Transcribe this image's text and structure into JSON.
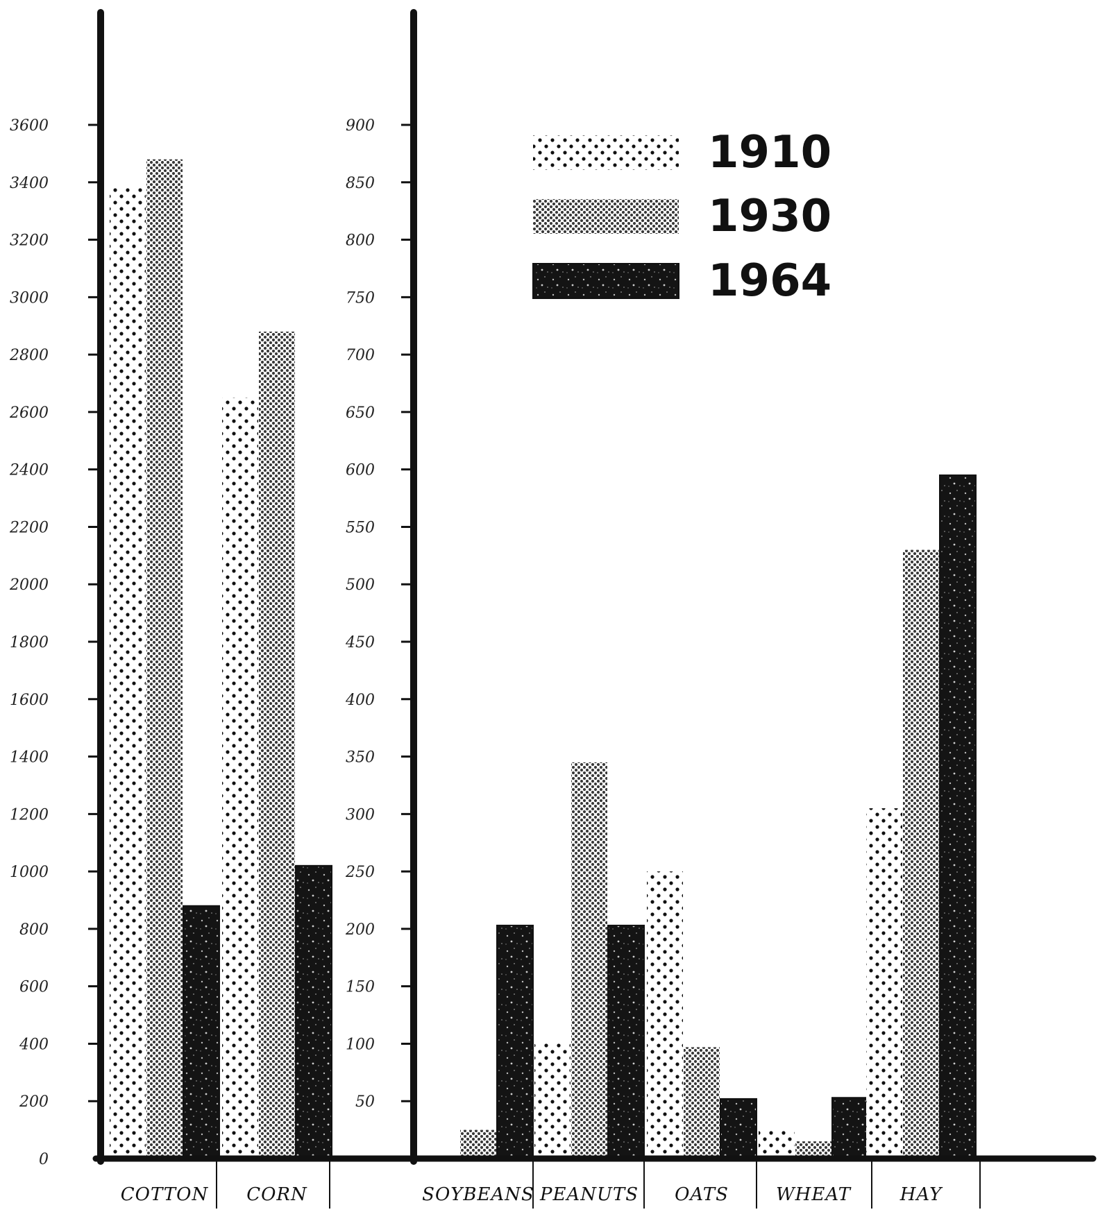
{
  "chart_data": [
    {
      "type": "bar",
      "ylim": [
        0,
        3600
      ],
      "yticks": [
        0,
        200,
        400,
        600,
        800,
        1000,
        1200,
        1400,
        1600,
        1800,
        2000,
        2200,
        2400,
        2600,
        2800,
        3000,
        3200,
        3400,
        3600
      ],
      "ytick_labels": [
        "0",
        "200",
        "400",
        "600",
        "800",
        "1000",
        "1200",
        "1400",
        "1600",
        "1800",
        "2000",
        "2200",
        "2400",
        "2600",
        "2800",
        "3000",
        "3200",
        "3400",
        "3600"
      ],
      "categories": [
        "COTTON",
        "CORN"
      ],
      "series": [
        {
          "name": "1910",
          "values": [
            3380,
            2650
          ]
        },
        {
          "name": "1930",
          "values": [
            3480,
            2880
          ]
        },
        {
          "name": "1964",
          "values": [
            880,
            1020
          ]
        }
      ]
    },
    {
      "type": "bar",
      "ylim": [
        0,
        900
      ],
      "yticks": [
        50,
        100,
        150,
        200,
        250,
        300,
        350,
        400,
        450,
        500,
        550,
        600,
        650,
        700,
        750,
        800,
        850,
        900
      ],
      "ytick_labels": [
        "50",
        "100",
        "150",
        "200",
        "250",
        "300",
        "350",
        "400",
        "450",
        "500",
        "550",
        "600",
        "650",
        "700",
        "750",
        "800",
        "850",
        "900"
      ],
      "categories": [
        "SOYBEANS",
        "PEANUTS",
        "OATS",
        "WHEAT",
        "HAY"
      ],
      "series": [
        {
          "name": "1910",
          "values": [
            0,
            100,
            250,
            25,
            305
          ]
        },
        {
          "name": "1930",
          "values": [
            25,
            345,
            97,
            15,
            530
          ]
        },
        {
          "name": "1964",
          "values": [
            203,
            203,
            52,
            53,
            595
          ]
        }
      ]
    }
  ],
  "legend": [
    {
      "label": "1910",
      "pattern": "dots"
    },
    {
      "label": "1930",
      "pattern": "crosshatch"
    },
    {
      "label": "1964",
      "pattern": "dark"
    }
  ],
  "colors": {
    "ink": "#111111",
    "paper": "#ffffff",
    "mid": "#8a8a8a"
  }
}
